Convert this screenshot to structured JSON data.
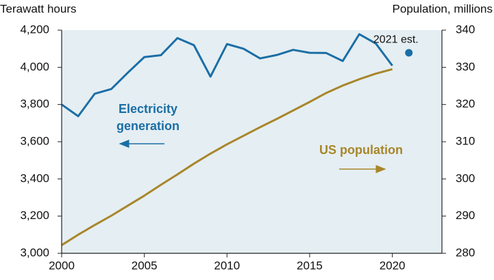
{
  "chart_data": {
    "type": "line",
    "y_axis_label": "Terawatt hours",
    "y2_axis_label": "Population, millions",
    "x": [
      2000,
      2001,
      2002,
      2003,
      2004,
      2005,
      2006,
      2007,
      2008,
      2009,
      2010,
      2011,
      2012,
      2013,
      2014,
      2015,
      2016,
      2017,
      2018,
      2019,
      2020
    ],
    "series": [
      {
        "color": "#1a6ea6",
        "values": [
          3800,
          3737,
          3858,
          3883,
          3971,
          4055,
          4065,
          4157,
          4119,
          3950,
          4125,
          4100,
          4048,
          4066,
          4094,
          4078,
          4077,
          4034,
          4178,
          4128,
          4009
        ]
      },
      {
        "color": "#a8862a",
        "axis": "y2",
        "values": [
          282.2,
          285.0,
          287.6,
          290.1,
          292.8,
          295.5,
          298.4,
          301.2,
          304.1,
          306.8,
          309.3,
          311.6,
          313.9,
          316.1,
          318.4,
          320.7,
          323.1,
          325.1,
          326.8,
          328.3,
          329.5
        ]
      }
    ],
    "estimate": {
      "label": "2021 est.",
      "x": 2021,
      "value": 4078,
      "color": "#1a6ea6"
    },
    "annotations": [
      {
        "lines": [
          "Electricity",
          "generation"
        ],
        "color": "#1a6ea6"
      },
      {
        "lines": [
          "US population"
        ],
        "color": "#a8862a"
      }
    ],
    "xlim": [
      2000,
      2023
    ],
    "xticks": [
      2000,
      2005,
      2010,
      2015,
      2020
    ],
    "ylim": [
      3000,
      4200
    ],
    "yticks": [
      {
        "value": 3000,
        "label": "3,000"
      },
      {
        "value": 3200,
        "label": "3,200"
      },
      {
        "value": 3400,
        "label": "3,400"
      },
      {
        "value": 3600,
        "label": "3,600"
      },
      {
        "value": 3800,
        "label": "3,800"
      },
      {
        "value": 4000,
        "label": "4,000"
      },
      {
        "value": 4200,
        "label": "4,200"
      }
    ],
    "y2lim": [
      280,
      340
    ],
    "y2ticks": [
      280,
      290,
      300,
      310,
      320,
      330,
      340
    ],
    "background": "#e5eef2"
  }
}
